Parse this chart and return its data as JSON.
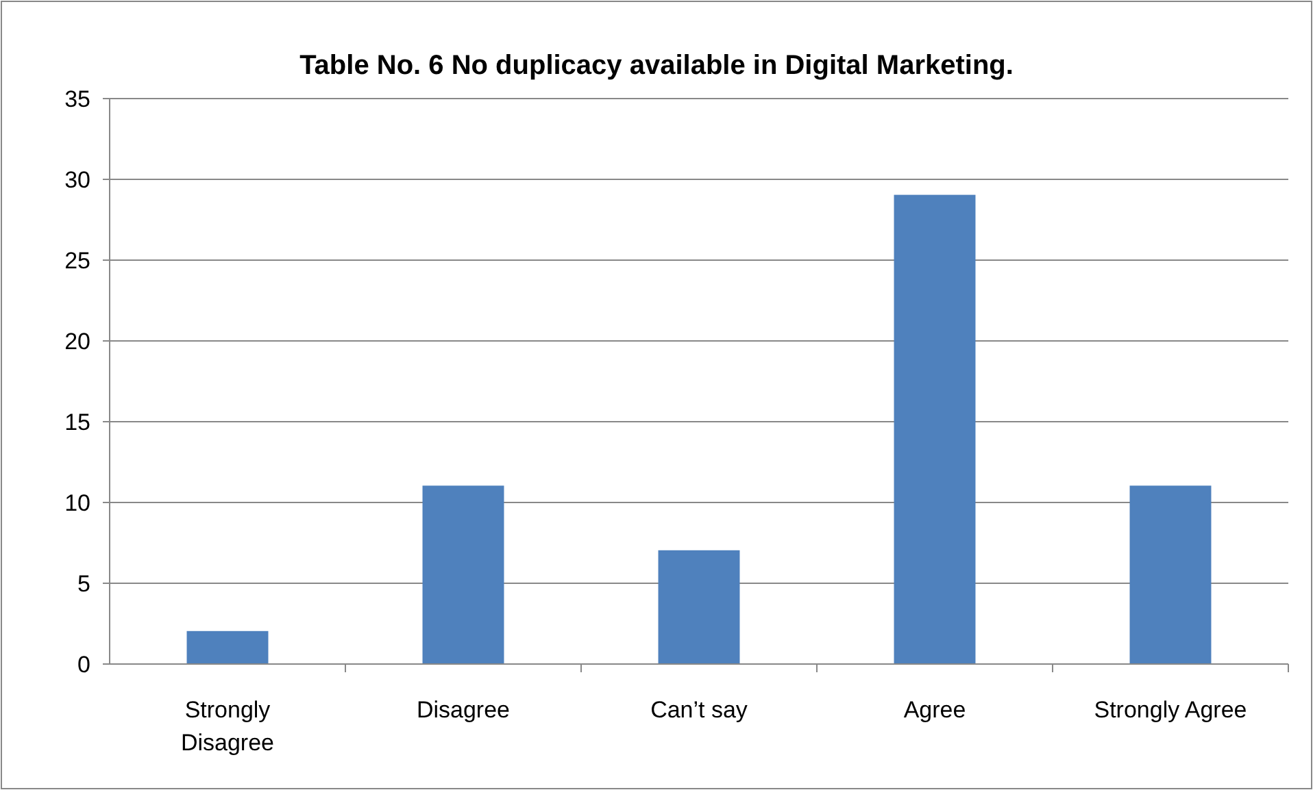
{
  "chart_data": {
    "type": "bar",
    "title": "Table No. 6 No duplicacy available in Digital Marketing.",
    "categories": [
      "Strongly Disagree",
      "Disagree",
      "Can’t say",
      "Agree",
      "Strongly Agree"
    ],
    "values": [
      2,
      11,
      7,
      29,
      11
    ],
    "color": "#4f81bd",
    "ylim": [
      0,
      35
    ],
    "yticks": [
      0,
      5,
      10,
      15,
      20,
      25,
      30,
      35
    ],
    "grid": "y"
  }
}
